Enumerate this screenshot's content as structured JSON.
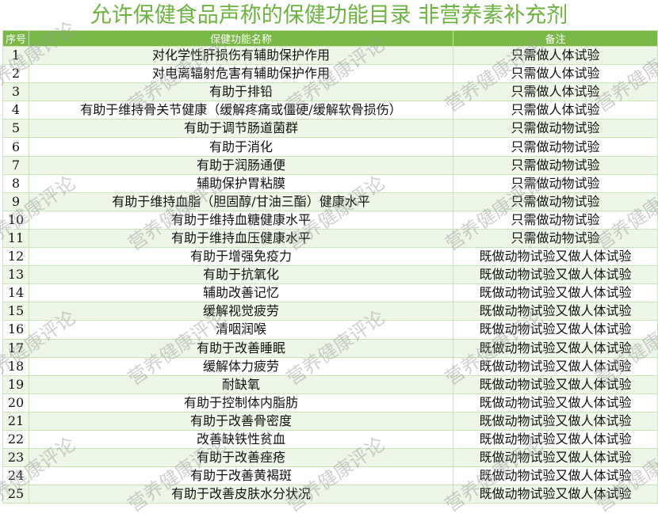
{
  "title": "允许保健食品声称的保健功能目录  非营养素补充剂",
  "columns": [
    "序号",
    "保健功能名称",
    "备注"
  ],
  "rows": [
    [
      "1",
      "对化学性肝损伤有辅助保护作用",
      "只需做人体试验"
    ],
    [
      "2",
      "对电离辐射危害有辅助保护作用",
      "只需做人体试验"
    ],
    [
      "3",
      "有助于排铅",
      "只需做人体试验"
    ],
    [
      "4",
      "有助于维持骨关节健康（缓解疼痛或僵硬/缓解软骨损伤）",
      "只需做人体试验"
    ],
    [
      "5",
      "有助于调节肠道菌群",
      "只需做动物试验"
    ],
    [
      "6",
      "有助于消化",
      "只需做动物试验"
    ],
    [
      "7",
      "有助于润肠通便",
      "只需做动物试验"
    ],
    [
      "8",
      "辅助保护胃粘膜",
      "只需做动物试验"
    ],
    [
      "9",
      "有助于维持血脂（胆固醇/甘油三酯）健康水平",
      "只需做动物试验"
    ],
    [
      "10",
      "有助于维持血糖健康水平",
      "只需做动物试验"
    ],
    [
      "11",
      "有助于维持血压健康水平",
      "只需做动物试验"
    ],
    [
      "12",
      "有助于增强免疫力",
      "既做动物试验又做人体试验"
    ],
    [
      "13",
      "有助于抗氧化",
      "既做动物试验又做人体试验"
    ],
    [
      "14",
      "辅助改善记忆",
      "既做动物试验又做人体试验"
    ],
    [
      "15",
      "缓解视觉疲劳",
      "既做动物试验又做人体试验"
    ],
    [
      "16",
      "清咽润喉",
      "既做动物试验又做人体试验"
    ],
    [
      "17",
      "有助于改善睡眠",
      "既做动物试验又做人体试验"
    ],
    [
      "18",
      "缓解体力疲劳",
      "既做动物试验又做人体试验"
    ],
    [
      "19",
      "耐缺氧",
      "既做动物试验又做人体试验"
    ],
    [
      "20",
      "有助于控制体内脂肪",
      "既做动物试验又做人体试验"
    ],
    [
      "21",
      "有助于改善骨密度",
      "既做动物试验又做人体试验"
    ],
    [
      "22",
      "改善缺铁性贫血",
      "既做动物试验又做人体试验"
    ],
    [
      "23",
      "有助于改善痤疮",
      "既做动物试验又做人体试验"
    ],
    [
      "24",
      "有助于改善黄褐斑",
      "既做动物试验又做人体试验"
    ],
    [
      "25",
      "有助于改善皮肤水分状况",
      "既做动物试验又做人体试验"
    ]
  ],
  "watermark": "营养健康评论",
  "colors": {
    "title": "#6cb33f",
    "header_bg": "#79b846",
    "row_alt": "#eef6e8"
  }
}
